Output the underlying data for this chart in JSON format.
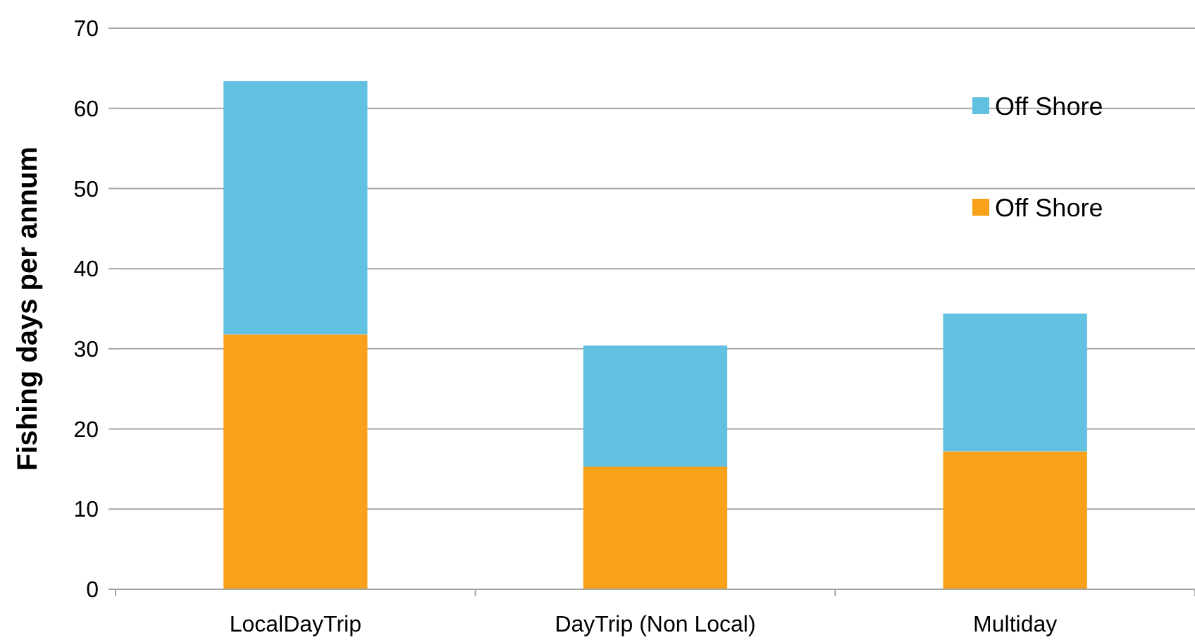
{
  "chart_data": {
    "type": "bar",
    "stacked": true,
    "ylabel": "Fishing days per annum",
    "categories": [
      "LocalDayTrip",
      "DayTrip (Non Local)",
      "Multiday"
    ],
    "series": [
      {
        "name": "Off Shore",
        "color": "#f9a11b",
        "values": [
          31.8,
          15.3,
          17.2
        ]
      },
      {
        "name": "Off Shore",
        "color": "#62c0e0",
        "values": [
          31.6,
          15.1,
          17.2
        ]
      }
    ],
    "ylim": [
      0,
      70
    ],
    "yticks": [
      0,
      10,
      20,
      30,
      40,
      50,
      60,
      70
    ],
    "grid": "y",
    "legend": "top right"
  }
}
